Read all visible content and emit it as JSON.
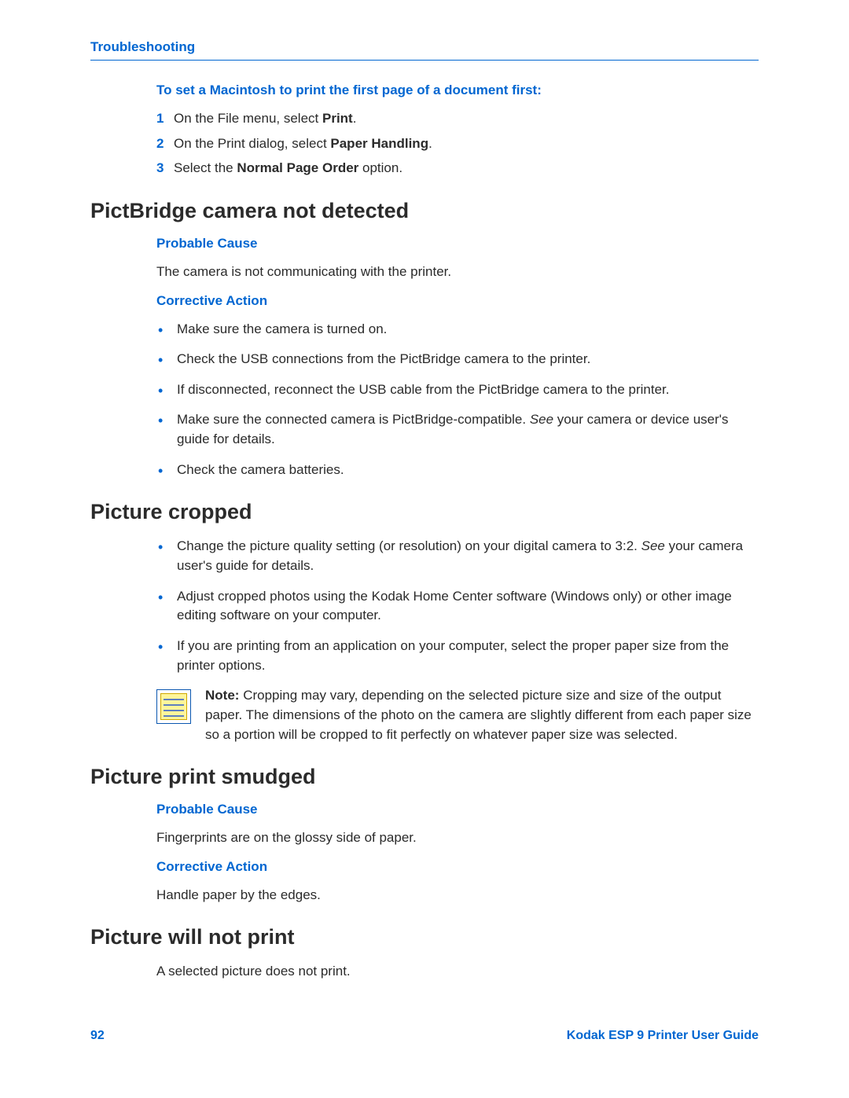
{
  "colors": {
    "accent": "#0066d1",
    "text": "#2b2b2b",
    "note_paper": "#fff59a",
    "note_line": "#5f7fbf",
    "note_border": "#0b57b0"
  },
  "typography": {
    "body_pt": 17,
    "h2_pt": 27,
    "subhead_pt": 17
  },
  "header": {
    "section": "Troubleshooting"
  },
  "mac_first_page": {
    "title": "To set a Macintosh to print the first page of a document first:",
    "steps": [
      {
        "n": "1",
        "pre": "On the File menu, select ",
        "bold": "Print",
        "post": "."
      },
      {
        "n": "2",
        "pre": "On the Print dialog, select ",
        "bold": "Paper Handling",
        "post": "."
      },
      {
        "n": "3",
        "pre": "Select the ",
        "bold": "Normal Page Order",
        "post": " option."
      }
    ]
  },
  "pictbridge": {
    "heading": "PictBridge camera not detected",
    "probable_label": "Probable Cause",
    "probable_text": "The camera is not communicating with the printer.",
    "corrective_label": "Corrective Action",
    "bullets": [
      "Make sure the camera is turned on.",
      "Check the USB connections from the PictBridge camera to the printer.",
      "If disconnected, reconnect the USB cable from the PictBridge camera to the printer.",
      "Make sure the connected camera is PictBridge-compatible. See your camera or device user's guide for details.",
      "Check the camera batteries."
    ],
    "bullet_see_index": 3
  },
  "cropped": {
    "heading": "Picture cropped",
    "bullets": [
      "Change the picture quality setting (or resolution) on your digital camera to 3:2. See your camera user's guide for details.",
      "Adjust cropped photos using the Kodak Home Center software (Windows only) or other image editing software on your computer.",
      "If you are printing from an application on your computer, select the proper paper size from the printer options."
    ],
    "note_label": "Note:",
    "note_text": "Cropping may vary, depending on the selected picture size and size of the output paper. The dimensions of the photo on the camera are slightly different from each paper size so a portion will be cropped to fit perfectly on whatever paper size was selected."
  },
  "smudged": {
    "heading": "Picture print smudged",
    "probable_label": "Probable Cause",
    "probable_text": "Fingerprints are on the glossy side of paper.",
    "corrective_label": "Corrective Action",
    "corrective_text": "Handle paper by the edges."
  },
  "noprint": {
    "heading": "Picture will not print",
    "text": "A selected picture does not print."
  },
  "footer": {
    "page": "92",
    "guide": "Kodak ESP 9 Printer User Guide"
  }
}
